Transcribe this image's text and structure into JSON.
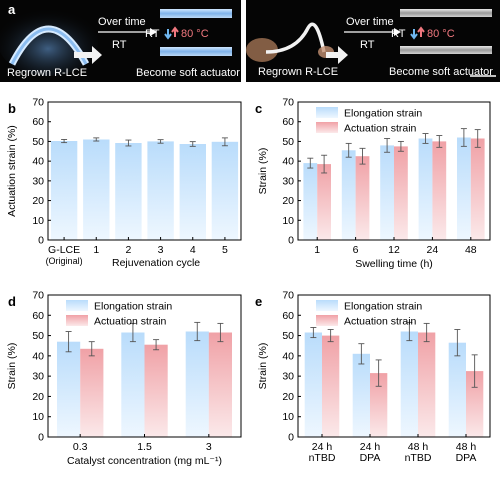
{
  "panel_a": {
    "letter": "a",
    "left": {
      "over_time": "Over time",
      "rt": "RT",
      "cycle_rt": "RT",
      "cycle_temp": "80 °C",
      "caption_left": "Regrown R-LCE",
      "caption_right": "Become soft actuator"
    },
    "right": {
      "over_time": "Over time",
      "rt": "RT",
      "cycle_rt": "RT",
      "cycle_temp": "80 °C",
      "caption_left": "Regrown R-LCE",
      "caption_right": "Become soft actuator"
    }
  },
  "colors": {
    "blue_top": "#b9dcfb",
    "blue_bottom": "#eef7ff",
    "red_top": "#f0a1a6",
    "red_bottom": "#fbe9ea",
    "up_arrow": "#f0787f",
    "down_arrow": "#6fb7f0"
  },
  "chart_data": [
    {
      "panel": "b",
      "type": "bar",
      "categories": [
        "G-LCE\n(Original)",
        "1",
        "2",
        "3",
        "4",
        "5"
      ],
      "series": [
        {
          "values": [
            50.2,
            51.0,
            49.2,
            50.0,
            48.7,
            49.8
          ],
          "errors": [
            0.8,
            0.8,
            1.5,
            0.9,
            1.2,
            2.0
          ]
        }
      ],
      "xlabel": "Rejuvenation cycle",
      "ylabel": "Actuation strain (%)",
      "ylim": [
        0,
        70
      ],
      "yticks": [
        0,
        10,
        20,
        30,
        40,
        50,
        60,
        70
      ],
      "legend": null
    },
    {
      "panel": "c",
      "type": "bar",
      "categories": [
        "1",
        "6",
        "12",
        "24",
        "48"
      ],
      "series": [
        {
          "name": "Elongation strain",
          "values": [
            39,
            45.5,
            48,
            51.5,
            52
          ],
          "errors": [
            2.5,
            3.5,
            3.5,
            2.5,
            4.5
          ]
        },
        {
          "name": "Actuation strain",
          "values": [
            38.5,
            42.5,
            47.5,
            50,
            51.5
          ],
          "errors": [
            4.5,
            4,
            2.5,
            3,
            4.5
          ]
        }
      ],
      "xlabel": "Swelling time (h)",
      "ylabel": "Strain (%)",
      "ylim": [
        0,
        70
      ],
      "yticks": [
        0,
        10,
        20,
        30,
        40,
        50,
        60,
        70
      ],
      "legend": "top-left"
    },
    {
      "panel": "d",
      "type": "bar",
      "categories": [
        "0.3",
        "1.5",
        "3"
      ],
      "series": [
        {
          "name": "Elongation strain",
          "values": [
            47,
            51.5,
            52
          ],
          "errors": [
            5,
            4.5,
            4.5
          ]
        },
        {
          "name": "Actuation strain",
          "values": [
            43.5,
            45.5,
            51.5
          ],
          "errors": [
            3.5,
            2.5,
            4.5
          ]
        }
      ],
      "xlabel": "Catalyst concentration (mg mL⁻¹)",
      "ylabel": "Strain (%)",
      "ylim": [
        0,
        70
      ],
      "yticks": [
        0,
        10,
        20,
        30,
        40,
        50,
        60,
        70
      ],
      "legend": "top-left"
    },
    {
      "panel": "e",
      "type": "bar",
      "categories": [
        "24 h\nnTBD",
        "24 h\nDPA",
        "48 h\nnTBD",
        "48 h\nDPA"
      ],
      "series": [
        {
          "name": "Elongation strain",
          "values": [
            51.5,
            41,
            52,
            46.5
          ],
          "errors": [
            2.5,
            5,
            4.5,
            6.5
          ]
        },
        {
          "name": "Actuation strain",
          "values": [
            50,
            31.5,
            51.5,
            32.5
          ],
          "errors": [
            3,
            6.5,
            4.5,
            8
          ]
        }
      ],
      "xlabel": "",
      "ylabel": "Strain (%)",
      "ylim": [
        0,
        70
      ],
      "yticks": [
        0,
        10,
        20,
        30,
        40,
        50,
        60,
        70
      ],
      "legend": "top-left"
    }
  ]
}
